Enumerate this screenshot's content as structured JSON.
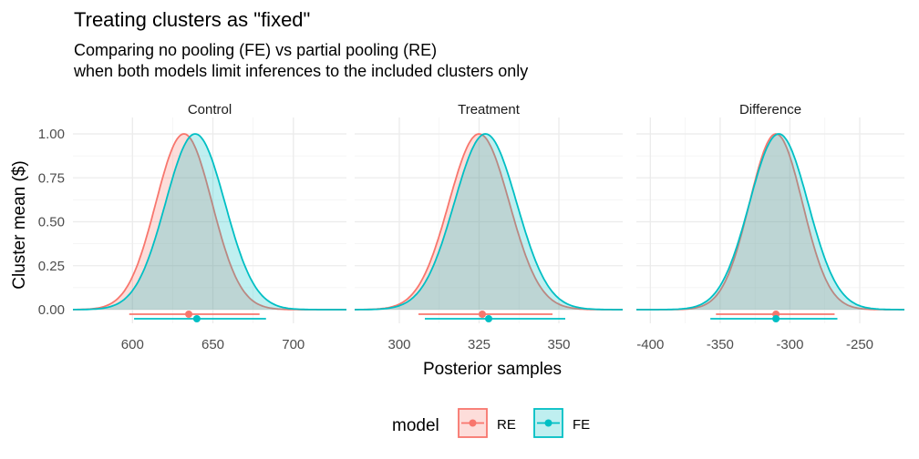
{
  "chart_data": {
    "type": "area",
    "title": "Treating clusters as \"fixed\"",
    "subtitle_lines": [
      "Comparing no pooling (FE) vs partial pooling (RE)",
      "when both models limit inferences to the included clusters only"
    ],
    "xlabel": "Posterior samples",
    "ylabel": "Cluster mean ($)",
    "ylim": [
      0,
      1
    ],
    "y_ticks": [
      "0.00",
      "0.25",
      "0.50",
      "0.75",
      "1.00"
    ],
    "grid": true,
    "legend": {
      "title": "model",
      "position": "bottom",
      "entries": [
        {
          "label": "RE",
          "color": "#F8766D",
          "fill": "#F8766D"
        },
        {
          "label": "FE",
          "color": "#00BFC4",
          "fill": "#00BFC4"
        }
      ]
    },
    "panels": [
      {
        "label": "Control",
        "xlim": [
          563,
          733
        ],
        "x_ticks": [
          600,
          650,
          700
        ],
        "x_tick_labels": [
          "600",
          "650",
          "700"
        ],
        "series": [
          {
            "name": "RE",
            "mode": 632,
            "sd": 17.5,
            "interval": [
              598,
              679
            ],
            "point": 635
          },
          {
            "name": "FE",
            "mode": 639,
            "sd": 18.5,
            "interval": [
              601,
              683
            ],
            "point": 640
          }
        ]
      },
      {
        "label": "Treatment",
        "xlim": [
          286,
          370
        ],
        "x_ticks": [
          300,
          325,
          350
        ],
        "x_tick_labels": [
          "300",
          "325",
          "350"
        ],
        "series": [
          {
            "name": "RE",
            "mode": 325,
            "sd": 9.5,
            "interval": [
              306,
              348
            ],
            "point": 326
          },
          {
            "name": "FE",
            "mode": 327,
            "sd": 9.8,
            "interval": [
              308,
              352
            ],
            "point": 328
          }
        ]
      },
      {
        "label": "Difference",
        "xlim": [
          -410,
          -218
        ],
        "x_ticks": [
          -400,
          -350,
          -300,
          -250
        ],
        "x_tick_labels": [
          "-400",
          "-350",
          "-300",
          "-250"
        ],
        "series": [
          {
            "name": "RE",
            "mode": -310,
            "sd": 19,
            "interval": [
              -353,
              -268
            ],
            "point": -310
          },
          {
            "name": "FE",
            "mode": -308,
            "sd": 21,
            "interval": [
              -357,
              -266
            ],
            "point": -310
          }
        ]
      }
    ]
  }
}
